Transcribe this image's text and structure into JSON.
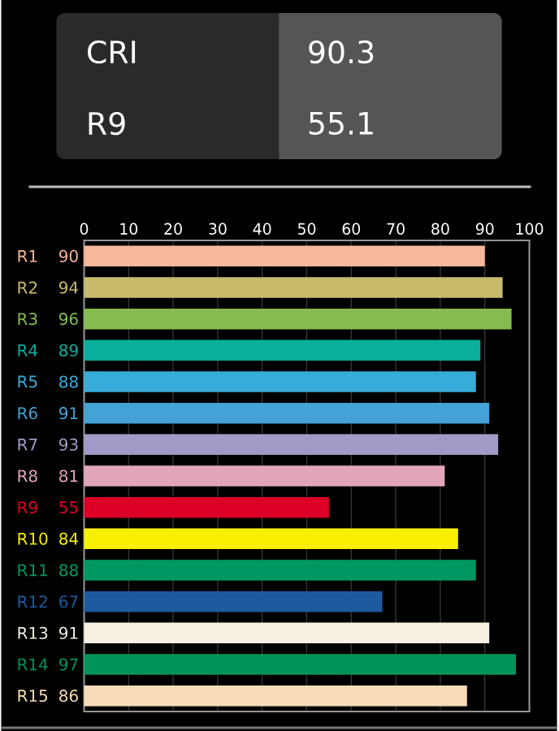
{
  "chart_data": {
    "type": "bar",
    "orientation": "horizontal",
    "categories": [
      "R1",
      "R2",
      "R3",
      "R4",
      "R5",
      "R6",
      "R7",
      "R8",
      "R9",
      "R10",
      "R11",
      "R12",
      "R13",
      "R14",
      "R15"
    ],
    "values": [
      90,
      94,
      96,
      89,
      88,
      91,
      93,
      81,
      55,
      84,
      88,
      67,
      91,
      97,
      86
    ],
    "colors": [
      "#f7b89c",
      "#c8bb6c",
      "#84bc50",
      "#0aae9c",
      "#38acd8",
      "#44a2d6",
      "#a29ac6",
      "#e2a6b8",
      "#dc0026",
      "#f8f000",
      "#009862",
      "#1e5aa0",
      "#f6f0e2",
      "#00935a",
      "#f8dcb8"
    ],
    "xlim": [
      0,
      100
    ],
    "xticks": [
      0,
      10,
      20,
      30,
      40,
      50,
      60,
      70,
      80,
      90,
      100
    ],
    "grid": "x",
    "data_labels": true,
    "annotations": [
      "CRI",
      "90.3",
      "R9",
      "55.1"
    ]
  }
}
